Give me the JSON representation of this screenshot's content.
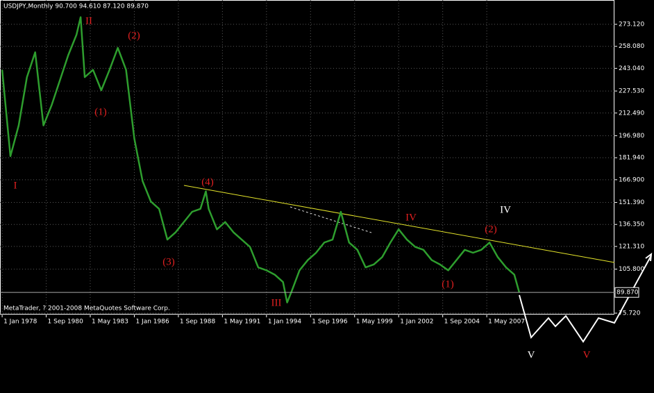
{
  "chart_data": {
    "type": "line",
    "title": "USDJPY,Monthly  90.700 94.610 87.120 89.870",
    "footer": "MetaTrader, ? 2001-2008 MetaQuotes Software Corp.",
    "series": [
      {
        "name": "USDJPY",
        "color": "#2e9e2e",
        "x": [
          1978.0,
          1978.5,
          1979.0,
          1979.5,
          1980.0,
          1980.5,
          1981.0,
          1981.5,
          1982.0,
          1982.5,
          1982.75,
          1983.0,
          1983.5,
          1984.0,
          1984.5,
          1985.0,
          1985.5,
          1986.0,
          1986.5,
          1987.0,
          1987.5,
          1988.0,
          1988.5,
          1989.0,
          1989.5,
          1990.0,
          1990.33,
          1990.5,
          1991.0,
          1991.5,
          1992.0,
          1992.5,
          1993.0,
          1993.5,
          1994.0,
          1994.5,
          1995.0,
          1995.25,
          1995.5,
          1996.0,
          1996.5,
          1997.0,
          1997.5,
          1998.0,
          1998.5,
          1999.0,
          1999.5,
          2000.0,
          2000.5,
          2001.0,
          2001.5,
          2002.0,
          2002.5,
          2003.0,
          2003.5,
          2004.0,
          2004.5,
          2005.0,
          2005.5,
          2006.0,
          2006.5,
          2007.0,
          2007.5,
          2008.0,
          2008.5,
          2009.0,
          2009.3
        ],
        "values": [
          242,
          183,
          204,
          237,
          254,
          204,
          218,
          235,
          252,
          266,
          278,
          237,
          242,
          228,
          242,
          257,
          242,
          195,
          166,
          152,
          147,
          126,
          131,
          138,
          145,
          147,
          159,
          147,
          133,
          138,
          131,
          126,
          121,
          107,
          105,
          102,
          97,
          83,
          90,
          105,
          112,
          117,
          124,
          126,
          145,
          124,
          119,
          107,
          109,
          114,
          124,
          133,
          126,
          121,
          119,
          112,
          109,
          105,
          112,
          119,
          117,
          119,
          124,
          114,
          107,
          102,
          89.87
        ]
      }
    ],
    "xlim": [
      1977.87,
      2015.06
    ],
    "ylim": [
      74.77,
      289.73
    ],
    "xticks": [
      {
        "value": 1978.0,
        "label": "1 Jan 1978"
      },
      {
        "value": 1980.667,
        "label": "1 Sep 1980"
      },
      {
        "value": 1983.333,
        "label": "1 May 1983"
      },
      {
        "value": 1986.0,
        "label": "1 Jan 1986"
      },
      {
        "value": 1988.667,
        "label": "1 Sep 1988"
      },
      {
        "value": 1991.333,
        "label": "1 May 1991"
      },
      {
        "value": 1994.0,
        "label": "1 Jan 1994"
      },
      {
        "value": 1996.667,
        "label": "1 Sep 1996"
      },
      {
        "value": 1999.333,
        "label": "1 May 1999"
      },
      {
        "value": 2002.0,
        "label": "1 Jan 2002"
      },
      {
        "value": 2004.667,
        "label": "1 Sep 2004"
      },
      {
        "value": 2007.333,
        "label": "1 May 2007"
      }
    ],
    "yticks": [
      {
        "value": 273.12,
        "label": "273.120"
      },
      {
        "value": 258.08,
        "label": "258.080"
      },
      {
        "value": 243.04,
        "label": "243.040"
      },
      {
        "value": 227.53,
        "label": "227.530"
      },
      {
        "value": 212.49,
        "label": "212.490"
      },
      {
        "value": 196.98,
        "label": "196.980"
      },
      {
        "value": 181.94,
        "label": "181.940"
      },
      {
        "value": 166.9,
        "label": "166.900"
      },
      {
        "value": 151.39,
        "label": "151.390"
      },
      {
        "value": 136.35,
        "label": "136.350"
      },
      {
        "value": 121.31,
        "label": "121.310"
      },
      {
        "value": 105.8,
        "label": "105.800"
      },
      {
        "value": 75.72,
        "label": "75.720"
      }
    ],
    "current_price": {
      "value": 89.87,
      "label": "89.870"
    },
    "grid": true,
    "annotations": [
      {
        "text": "I",
        "color": "#e02020"
      },
      {
        "text": "II",
        "color": "#e02020"
      },
      {
        "text": "(2)",
        "color": "#e02020"
      },
      {
        "text": "(1)",
        "color": "#e02020"
      },
      {
        "text": "(4)",
        "color": "#e02020"
      },
      {
        "text": "(3)",
        "color": "#e02020"
      },
      {
        "text": "III",
        "color": "#e02020"
      },
      {
        "text": "IV",
        "color": "#e02020"
      },
      {
        "text": "(1)",
        "color": "#e02020"
      },
      {
        "text": "(2)",
        "color": "#e02020"
      },
      {
        "text": "IV",
        "color": "#ffffff"
      },
      {
        "text": "V",
        "color": "#ffffff"
      },
      {
        "text": "V",
        "color": "#e02020"
      }
    ]
  }
}
